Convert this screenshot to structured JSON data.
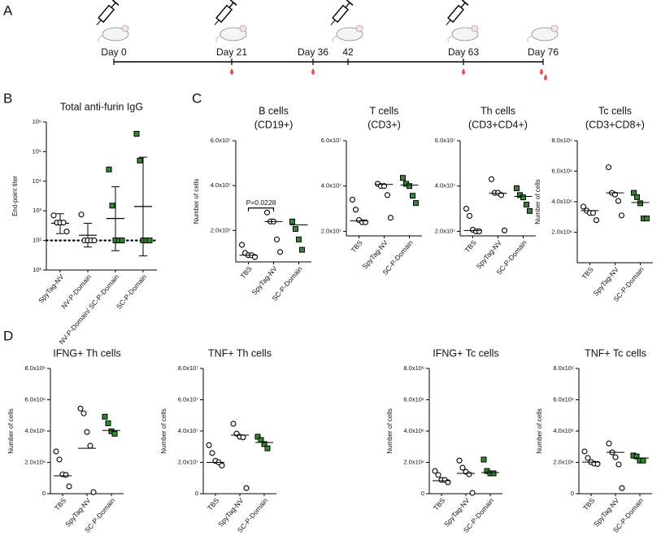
{
  "panel_labels": [
    "A",
    "B",
    "C",
    "D"
  ],
  "timeline": {
    "labels": [
      "Day 0",
      "Day 21",
      "Day 36",
      "42",
      "Day 63",
      "Day 76"
    ]
  },
  "chart_data": [
    {
      "type": "dotplot",
      "title": "Total anti-furin IgG",
      "ylabel": "End-point titer",
      "log": true,
      "categories": [
        "SpyTag-NV",
        "NV-P-Domain",
        "NV-P-Domain/ SC-P-Domain",
        "SC-P-Domain"
      ],
      "values": [
        [
          700,
          400,
          400,
          400,
          200
        ],
        [
          750,
          100,
          100,
          100,
          100
        ],
        [
          25000,
          1500,
          100,
          100,
          100
        ],
        [
          400000,
          50000,
          100,
          100,
          100
        ]
      ],
      "means": [
        380,
        150,
        550,
        1400
      ],
      "ci_low": [
        170,
        60,
        45,
        30
      ],
      "ci_high": [
        800,
        380,
        6500,
        65000
      ],
      "threshold": 100,
      "fills": [
        "#ffffff",
        "#ffffff",
        "#2e8b2e",
        "#2e8b2e"
      ],
      "markers": [
        "circle",
        "circle",
        "square",
        "square"
      ],
      "ylim": [
        10,
        1000000
      ],
      "yticks": [
        {
          "value": 10,
          "label": "10¹"
        },
        {
          "value": 100,
          "label": "10²"
        },
        {
          "value": 1000,
          "label": "10³"
        },
        {
          "value": 10000,
          "label": "10⁴"
        },
        {
          "value": 100000,
          "label": "10⁵"
        },
        {
          "value": 1000000,
          "label": "10⁶"
        }
      ]
    },
    {
      "type": "dotplot",
      "title": "B cells",
      "subtitle": "(CD19+)",
      "ylabel": "Number of cells",
      "categories": [
        "TBS",
        "SpyTag-NV",
        "SC-P-Domain"
      ],
      "values": [
        [
          13600000,
          10000000,
          9000000,
          9000000,
          8200000
        ],
        [
          28000000,
          24000000,
          24000000,
          16000000,
          10400000
        ],
        [
          24000000,
          20700000,
          16000000,
          11400000
        ]
      ],
      "medians": [
        9000000,
        24000000,
        22500000
      ],
      "annotation": {
        "text": "P=0.0228",
        "y": 30000000
      },
      "fills": [
        "#ffffff",
        "#ffffff",
        "#2e8b2e"
      ],
      "markers": [
        "circle",
        "circle",
        "square"
      ],
      "ylim": [
        6000000,
        60000000
      ],
      "yticks": [
        {
          "value": 20000000,
          "label": "2.0x10⁷"
        },
        {
          "value": 40000000,
          "label": "4.0x10⁷"
        },
        {
          "value": 60000000,
          "label": "6.0x10⁷"
        }
      ]
    },
    {
      "type": "dotplot",
      "title": "T cells",
      "subtitle": "(CD3+)",
      "categories": [
        "TBS",
        "SpyTag-NV",
        "SC-P-Domain"
      ],
      "values": [
        [
          34000000,
          29600000,
          25000000,
          24000000,
          24000000
        ],
        [
          41000000,
          40000000,
          40000000,
          36000000,
          26000000
        ],
        [
          43600000,
          41000000,
          40000000,
          35700000,
          32500000
        ]
      ],
      "medians": [
        24600000,
        40700000,
        40400000
      ],
      "fills": [
        "#ffffff",
        "#ffffff",
        "#2e8b2e"
      ],
      "markers": [
        "circle",
        "circle",
        "square"
      ],
      "ylim": [
        18000000,
        60000000
      ],
      "yticks": [
        {
          "value": 20000000,
          "label": "2.0x10⁷"
        },
        {
          "value": 40000000,
          "label": "4.0x10⁷"
        },
        {
          "value": 60000000,
          "label": "6.0x10⁷"
        }
      ]
    },
    {
      "type": "dotplot",
      "title": "Th cells",
      "subtitle": "(CD3+CD4+)",
      "categories": [
        "TBS",
        "SpyTag-NV",
        "SC-P-Domain"
      ],
      "values": [
        [
          30000000,
          26800000,
          20700000,
          20000000,
          20000000
        ],
        [
          43000000,
          37000000,
          37000000,
          36000000,
          20400000
        ],
        [
          39000000,
          36000000,
          35000000,
          31800000,
          29000000
        ]
      ],
      "medians": [
        20400000,
        36800000,
        35400000
      ],
      "fills": [
        "#ffffff",
        "#ffffff",
        "#2e8b2e"
      ],
      "markers": [
        "circle",
        "circle",
        "square"
      ],
      "ylim": [
        18000000,
        60000000
      ],
      "yticks": [
        {
          "value": 20000000,
          "label": "2.0x10⁷"
        },
        {
          "value": 40000000,
          "label": "4.0x10⁷"
        },
        {
          "value": 60000000,
          "label": "6.0x10⁷"
        }
      ]
    },
    {
      "type": "dotplot",
      "title": "Tc cells",
      "subtitle": "(CD3+CD8+)",
      "ylabel": "Number of cells",
      "categories": [
        "TBS",
        "SpyTag-NV",
        "SC-P-Domain"
      ],
      "values": [
        [
          3680000,
          3420000,
          3260000,
          3260000,
          2790000
        ],
        [
          6260000,
          4580000,
          4470000,
          4050000,
          3100000
        ],
        [
          4580000,
          4300000,
          3900000,
          2900000,
          2900000
        ]
      ],
      "medians": [
        3420000,
        4580000,
        3950000
      ],
      "fills": [
        "#ffffff",
        "#ffffff",
        "#2e8b2e"
      ],
      "markers": [
        "circle",
        "circle",
        "square"
      ],
      "ylim": [
        0,
        8000000
      ],
      "yticks": [
        {
          "value": 2000000,
          "label": "2.0x10⁶"
        },
        {
          "value": 4000000,
          "label": "4.0x10⁶"
        },
        {
          "value": 6000000,
          "label": "6.0x10⁶"
        },
        {
          "value": 8000000,
          "label": "8.0x10⁶"
        }
      ]
    },
    {
      "type": "dotplot",
      "title": "IFNG+ Th cells",
      "ylabel": "Number of cells",
      "categories": [
        "TBS",
        "SpyTag-NV",
        "SC-P-Domain"
      ],
      "values": [
        [
          2700000,
          2180000,
          1240000,
          1200000,
          470000
        ],
        [
          5440000,
          5130000,
          3940000,
          3060000,
          100000
        ],
        [
          4920000,
          4500000,
          3990000,
          3830000
        ]
      ],
      "medians": [
        1140000,
        2900000,
        4040000
      ],
      "fills": [
        "#ffffff",
        "#ffffff",
        "#2e8b2e"
      ],
      "markers": [
        "circle",
        "circle",
        "square"
      ],
      "ylim": [
        0,
        8000000
      ],
      "yticks": [
        0,
        {
          "value": 2000000,
          "label": "2.0x10⁶"
        },
        {
          "value": 4000000,
          "label": "4.0x10⁶"
        },
        {
          "value": 6000000,
          "label": "6.0x10⁶"
        },
        {
          "value": 8000000,
          "label": "8.0x10⁶"
        }
      ]
    },
    {
      "type": "dotplot",
      "title": "TNF+ Th cells",
      "ylabel": "Number of cells",
      "categories": [
        "TBS",
        "SpyTag-NV",
        "SC-P-Domain"
      ],
      "values": [
        [
          31000000,
          26000000,
          21000000,
          20000000,
          18000000
        ],
        [
          44700000,
          38400000,
          36400000,
          36000000,
          3600000
        ],
        [
          36400000,
          34300000,
          31700000,
          29000000
        ]
      ],
      "medians": [
        20000000,
        37400000,
        32700000
      ],
      "fills": [
        "#ffffff",
        "#ffffff",
        "#2e8b2e"
      ],
      "markers": [
        "circle",
        "circle",
        "square"
      ],
      "ylim": [
        0,
        80000000
      ],
      "yticks": [
        0,
        {
          "value": 20000000,
          "label": "2.0x10⁷"
        },
        {
          "value": 40000000,
          "label": "4.0x10⁷"
        },
        {
          "value": 60000000,
          "label": "6.0x10⁷"
        },
        {
          "value": 80000000,
          "label": "8.0x10⁷"
        }
      ]
    },
    {
      "type": "dotplot",
      "title": "IFNG+ Tc cells",
      "ylabel": "Number of cells",
      "categories": [
        "TBS",
        "SpyTag-NV",
        "SC-P-Domain"
      ],
      "values": [
        [
          1450000,
          1200000,
          880000,
          880000,
          730000
        ],
        [
          2120000,
          1660000,
          1400000,
          1240000,
          50000
        ],
        [
          2180000,
          1450000,
          1300000,
          1300000
        ]
      ],
      "medians": [
        830000,
        1300000,
        1350000
      ],
      "fills": [
        "#ffffff",
        "#ffffff",
        "#2e8b2e"
      ],
      "markers": [
        "circle",
        "circle",
        "square"
      ],
      "ylim": [
        0,
        8000000
      ],
      "yticks": [
        0,
        {
          "value": 2000000,
          "label": "2.0x10⁶"
        },
        {
          "value": 4000000,
          "label": "4.0x10⁶"
        },
        {
          "value": 6000000,
          "label": "6.0x10⁶"
        },
        {
          "value": 8000000,
          "label": "8.0x10⁶"
        }
      ]
    },
    {
      "type": "dotplot",
      "title": "TNF+ Tc cells",
      "ylabel": "Number of cells",
      "categories": [
        "TBS",
        "SpyTag-NV",
        "SC-P-Domain"
      ],
      "values": [
        [
          2700000,
          2280000,
          2020000,
          1920000,
          1900000
        ],
        [
          3210000,
          2640000,
          2330000,
          1870000,
          360000
        ],
        [
          2440000,
          2380000,
          2120000,
          2120000
        ]
      ],
      "medians": [
        2020000,
        2640000,
        2280000
      ],
      "fills": [
        "#ffffff",
        "#ffffff",
        "#2e8b2e"
      ],
      "markers": [
        "circle",
        "circle",
        "square"
      ],
      "ylim": [
        0,
        8000000
      ],
      "yticks": [
        0,
        {
          "value": 2000000,
          "label": "2.0x10⁶"
        },
        {
          "value": 4000000,
          "label": "4.0x10⁶"
        },
        {
          "value": 6000000,
          "label": "6.0x10⁶"
        },
        {
          "value": 8000000,
          "label": "8.0x10⁶"
        }
      ]
    }
  ]
}
